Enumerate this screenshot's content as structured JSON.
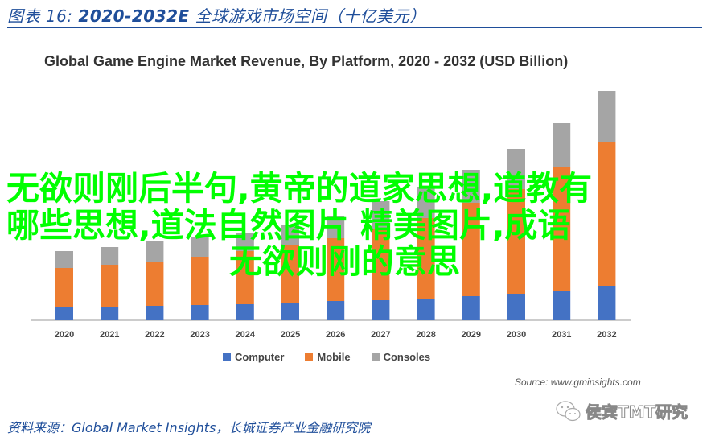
{
  "figure_title": {
    "prefix": "图表 16:",
    "range": "2020-2032E",
    "caption": "全球游戏市场空间（十亿美元）"
  },
  "source_note": "Source: www.gminsights.com",
  "footer": "资料来源：Global Market Insights，长城证券产业金融研究院",
  "watermark": "侯宾TMT研究",
  "overlay_text": {
    "line1": "无欲则刚后半句,黄帝的道家思想,道教有",
    "line2": "哪些思想,道法自然图片 精美图片,成语",
    "line3": "无欲则刚的意思"
  },
  "colors": {
    "computer": "#4472c4",
    "mobile": "#ed7d31",
    "consoles": "#a5a5a5",
    "accent": "#1f4e9a",
    "overlay": "#00ff00"
  },
  "chart_data": {
    "type": "bar",
    "stacked": true,
    "title": "Global Game Engine Market Revenue, By Platform, 2020 - 2032 (USD Billion)",
    "xlabel": "",
    "ylabel": "",
    "categories": [
      "2020",
      "2021",
      "2022",
      "2023",
      "2024",
      "2025",
      "2026",
      "2027",
      "2028",
      "2029",
      "2030",
      "2031",
      "2032"
    ],
    "series": [
      {
        "name": "Computer",
        "values": [
          16,
          17,
          18,
          19,
          20,
          22,
          24,
          25,
          27,
          30,
          33,
          37,
          42
        ]
      },
      {
        "name": "Mobile",
        "values": [
          49,
          52,
          55,
          60,
          66,
          72,
          78,
          89,
          100,
          116,
          130,
          154,
          180
        ]
      },
      {
        "name": "Consoles",
        "values": [
          21,
          22,
          25,
          25,
          22,
          24,
          28,
          34,
          39,
          41,
          50,
          54,
          63
        ]
      }
    ],
    "ylim": [
      0,
      300
    ],
    "grid": false,
    "legend": "bottom"
  }
}
